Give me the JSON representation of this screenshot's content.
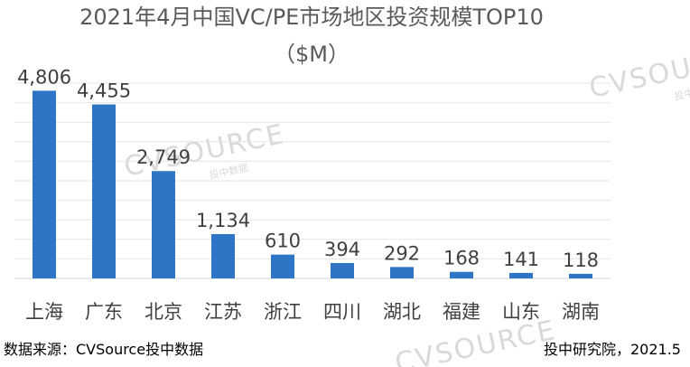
{
  "chart_data": {
    "type": "bar",
    "title": "2021年4月中国VC/PE市场地区投资规模TOP10",
    "subtitle": "（$M）",
    "categories": [
      "上海",
      "广东",
      "北京",
      "江苏",
      "浙江",
      "四川",
      "湖北",
      "福建",
      "山东",
      "湖南"
    ],
    "values": [
      4806,
      4455,
      2749,
      1134,
      610,
      394,
      292,
      168,
      141,
      118
    ],
    "value_labels": [
      "4,806",
      "4,455",
      "2,749",
      "1,134",
      "610",
      "394",
      "292",
      "168",
      "141",
      "118"
    ],
    "ylim": [
      0,
      5000
    ],
    "grid": true,
    "bar_color": "#2e75c5",
    "gridline_color": "#e6e6e6"
  },
  "footer": {
    "source": "数据来源：CVSource投中数据",
    "publisher": "投中研究院，2021.5"
  },
  "watermark": {
    "brand": "CVSOURCE",
    "sub": "投中数据"
  }
}
